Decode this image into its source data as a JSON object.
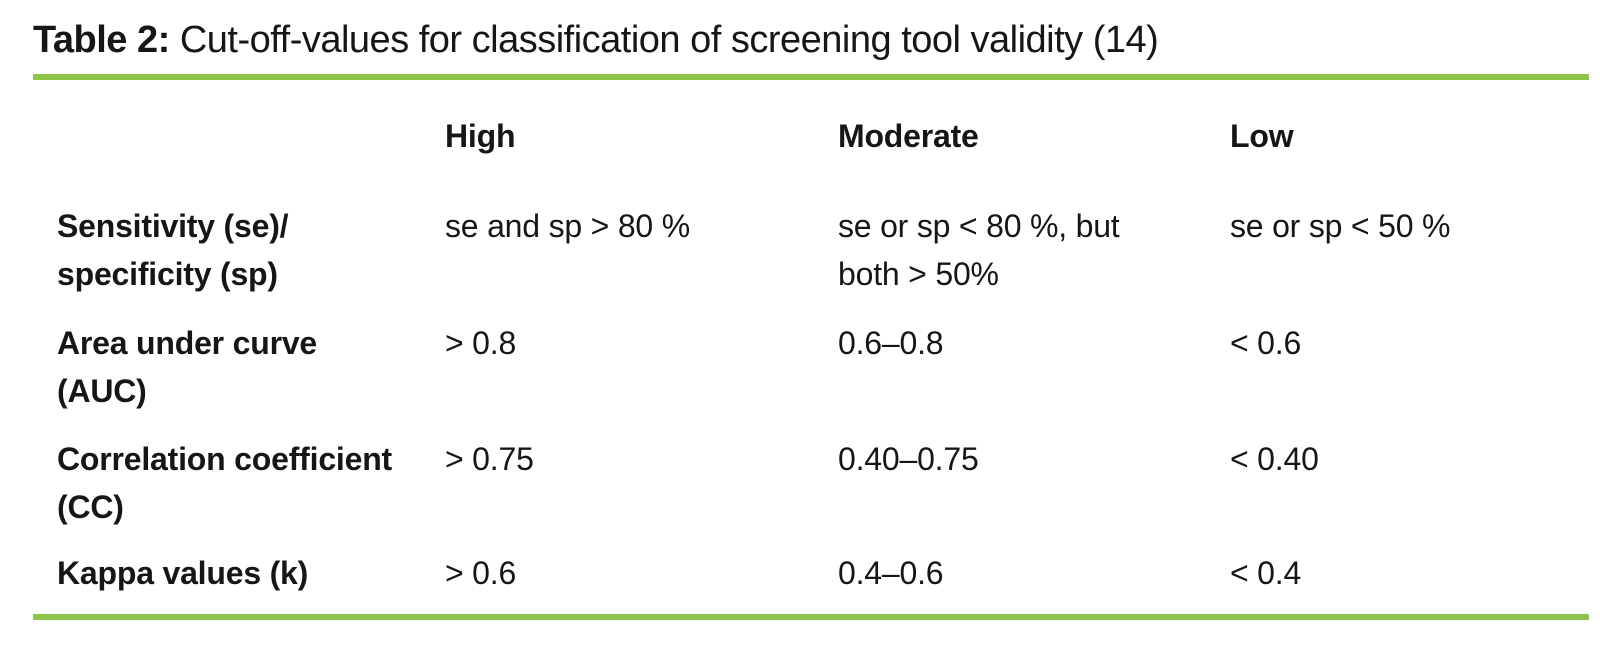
{
  "accent_color": "#8CC449",
  "caption": {
    "label": "Table 2:",
    "text": " Cut-off-values for classification of screening tool validity (14)"
  },
  "table": {
    "headers": [
      "High",
      "Moderate",
      "Low"
    ],
    "rows": [
      {
        "label": "Sensitivity (se)/\nspecificity (sp)",
        "high": "se and sp > 80 %",
        "moderate": "se or sp < 80 %, but\nboth > 50%",
        "low": "se or sp < 50 %"
      },
      {
        "label": "Area under curve\n(AUC)",
        "high": "> 0.8",
        "moderate": "0.6–0.8",
        "low": "< 0.6"
      },
      {
        "label": "Correlation coefficient\n(CC)",
        "high": "> 0.75",
        "moderate": "0.40–0.75",
        "low": "< 0.40"
      },
      {
        "label": "Kappa values (k)",
        "high": "> 0.6",
        "moderate": "0.4–0.6",
        "low": "< 0.4"
      }
    ]
  }
}
